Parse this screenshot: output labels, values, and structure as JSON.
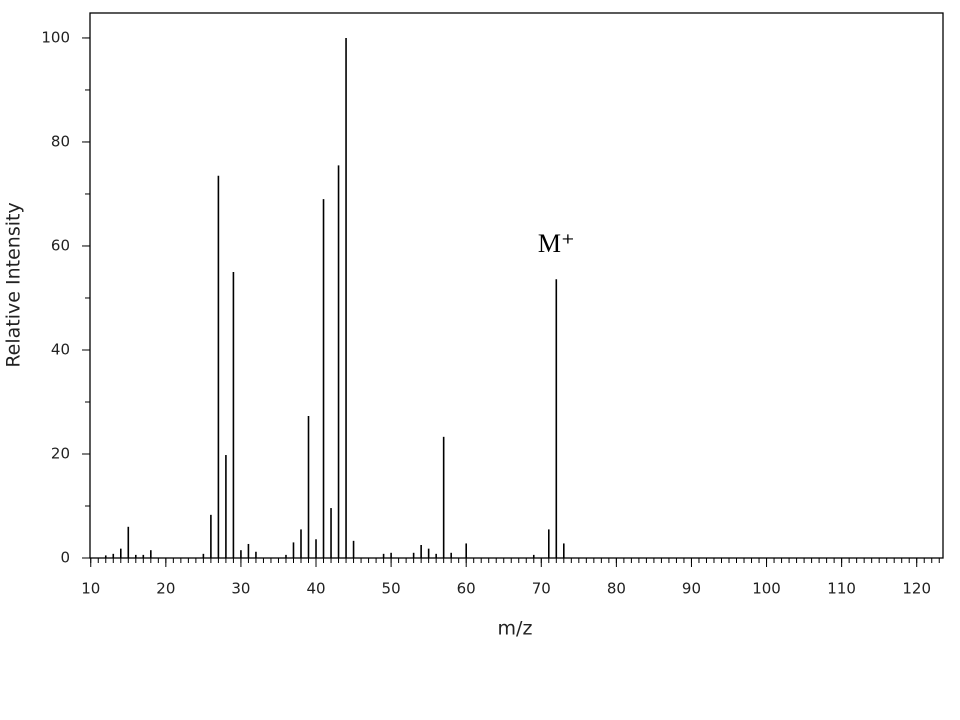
{
  "chart_data": {
    "type": "bar",
    "x_label": "m/z",
    "y_label": "Relative Intensity",
    "color": "#000000",
    "x": [
      12,
      13,
      14,
      15,
      16,
      17,
      18,
      25,
      26,
      27,
      28,
      29,
      30,
      31,
      32,
      36,
      37,
      38,
      39,
      40,
      41,
      42,
      43,
      44,
      45,
      49,
      50,
      53,
      54,
      55,
      56,
      57,
      58,
      60,
      69,
      71,
      72,
      73
    ],
    "values": [
      0.5,
      0.8,
      1.8,
      6.0,
      0.6,
      0.6,
      1.5,
      0.8,
      8.3,
      73.5,
      19.8,
      55.0,
      1.5,
      2.7,
      1.2,
      0.6,
      3.0,
      5.5,
      27.3,
      3.6,
      69.0,
      9.6,
      75.5,
      100,
      3.3,
      0.8,
      1.0,
      1.0,
      2.5,
      1.8,
      0.8,
      23.3,
      1.0,
      2.8,
      0.6,
      5.5,
      53.6,
      2.8
    ],
    "xlim": [
      9.9,
      123.5
    ],
    "ylim": [
      0,
      104.8
    ],
    "xticks": [
      10,
      20,
      30,
      40,
      50,
      60,
      70,
      80,
      90,
      100,
      110,
      120
    ],
    "yticks": [
      0,
      20,
      40,
      60,
      80,
      100
    ],
    "x_minor_ticks": [
      10,
      11,
      12,
      13,
      14,
      15,
      16,
      17,
      18,
      19,
      20,
      21,
      22,
      23,
      24,
      25,
      26,
      27,
      28,
      29,
      30,
      31,
      32,
      33,
      34,
      35,
      36,
      37,
      38,
      39,
      40,
      41,
      42,
      43,
      44,
      45,
      46,
      47,
      48,
      49,
      50,
      51,
      52,
      53,
      54,
      55,
      56,
      57,
      58,
      59,
      60,
      61,
      62,
      63,
      64,
      65,
      66,
      67,
      68,
      69,
      70,
      71,
      72,
      73,
      74,
      75,
      76,
      77,
      78,
      79,
      80,
      81,
      82,
      83,
      84,
      85,
      86,
      87,
      88,
      89,
      90,
      91,
      92,
      93,
      94,
      95,
      96,
      97,
      98,
      99,
      100,
      101,
      102,
      103,
      104,
      105,
      106,
      107,
      108,
      109,
      110,
      111,
      112,
      113,
      114,
      115,
      116,
      117,
      118,
      119,
      120,
      121,
      122,
      123
    ],
    "y_minor_ticks": [
      0,
      10,
      20,
      30,
      40,
      50,
      60,
      70,
      80,
      90,
      100
    ],
    "annotations": [
      {
        "text": "M⁺",
        "x": 72,
        "y": 60
      }
    ]
  }
}
